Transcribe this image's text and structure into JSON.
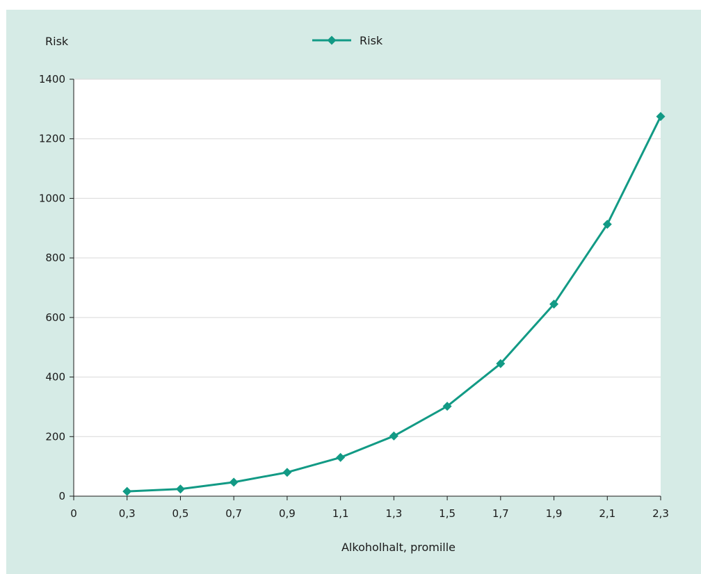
{
  "chart_data": {
    "type": "line",
    "title": "",
    "xlabel": "Alkoholhalt, promille",
    "ylabel": "Risk",
    "x_tick_labels": [
      "0",
      "0,3",
      "0,5",
      "0,7",
      "0,9",
      "1,1",
      "1,3",
      "1,5",
      "1,7",
      "1,9",
      "2,1",
      "2,3"
    ],
    "x": [
      0.3,
      0.5,
      0.7,
      0.9,
      1.1,
      1.3,
      1.5,
      1.7,
      1.9,
      2.1,
      2.3
    ],
    "series": [
      {
        "name": "Risk",
        "values": [
          16,
          24,
          47,
          80,
          130,
          202,
          302,
          445,
          645,
          913,
          1275
        ]
      }
    ],
    "ylim": [
      0,
      1400
    ],
    "y_ticks": [
      0,
      200,
      400,
      600,
      800,
      1000,
      1200,
      1400
    ],
    "grid": "horizontal",
    "legend_position": "top-center",
    "colors": {
      "background": "#d6ebe6",
      "plot_background": "#ffffff",
      "series": "#129a85",
      "grid": "#d9d9d9",
      "axis": "#1a1a1a"
    }
  }
}
